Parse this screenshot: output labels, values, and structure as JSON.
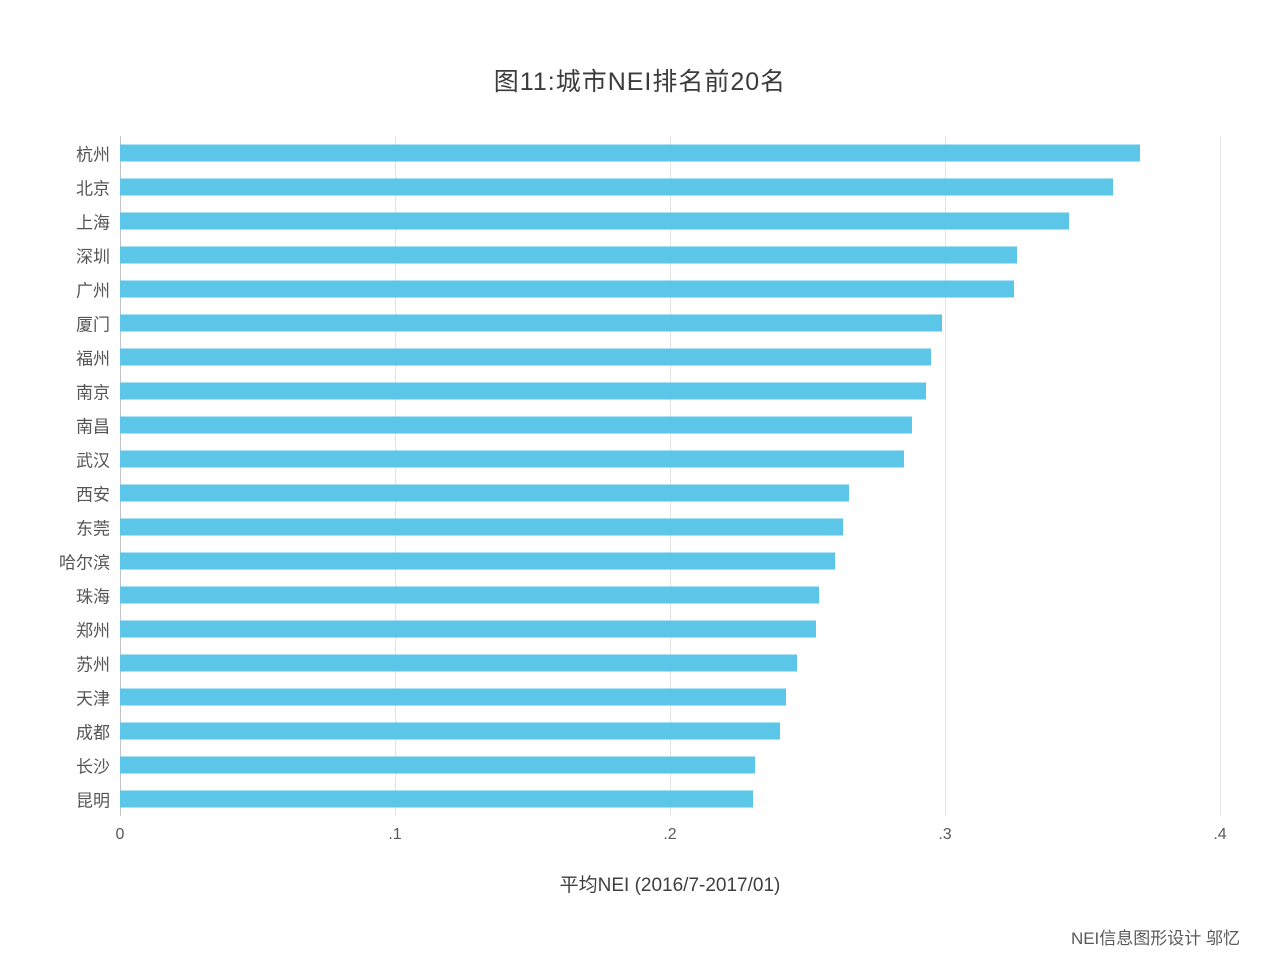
{
  "chart_data": {
    "type": "bar",
    "orientation": "horizontal",
    "title": "图11:城市NEI排名前20名",
    "xlabel": "平均NEI (2016/7-2017/01)",
    "ylabel": "",
    "xlim": [
      0,
      0.4
    ],
    "grid": true,
    "bar_color": "#5bc6e8",
    "categories": [
      "杭州",
      "北京",
      "上海",
      "深圳",
      "广州",
      "厦门",
      "福州",
      "南京",
      "南昌",
      "武汉",
      "西安",
      "东莞",
      "哈尔滨",
      "珠海",
      "郑州",
      "苏州",
      "天津",
      "成都",
      "长沙",
      "昆明"
    ],
    "values": [
      0.371,
      0.361,
      0.345,
      0.326,
      0.325,
      0.299,
      0.295,
      0.293,
      0.288,
      0.285,
      0.265,
      0.263,
      0.26,
      0.254,
      0.253,
      0.246,
      0.242,
      0.24,
      0.231,
      0.23
    ],
    "xticks": [
      {
        "label": "0",
        "value": 0
      },
      {
        "label": ".1",
        "value": 0.1
      },
      {
        "label": ".2",
        "value": 0.2
      },
      {
        "label": ".3",
        "value": 0.3
      },
      {
        "label": ".4",
        "value": 0.4
      }
    ],
    "credit": "NEI信息图形设计 邬忆"
  }
}
